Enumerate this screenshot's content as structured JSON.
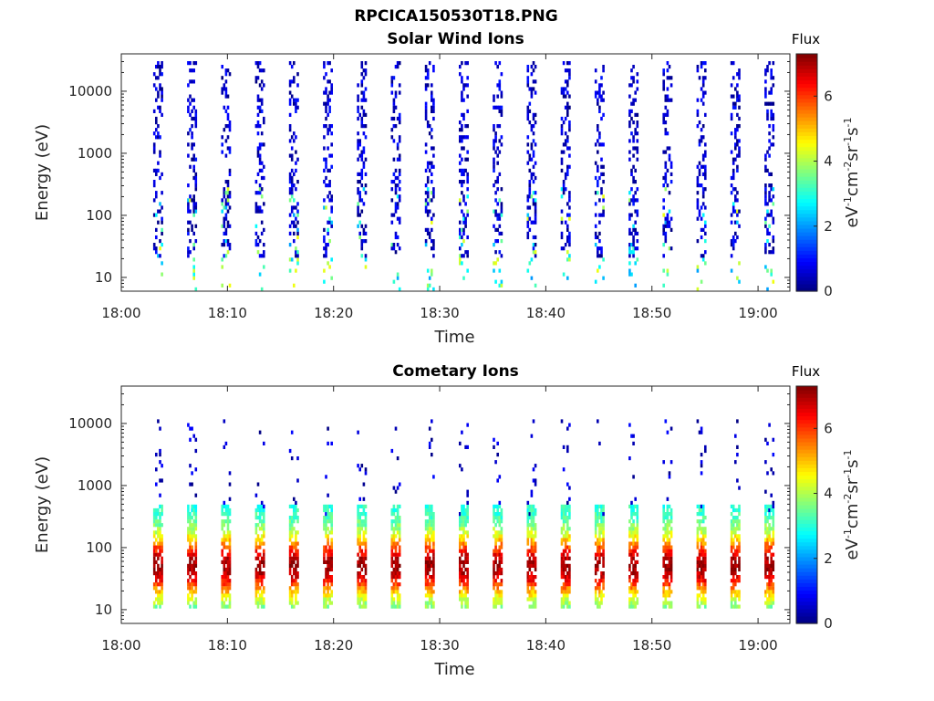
{
  "figure_title": "RPCICA150530T18.PNG",
  "chart_data": [
    {
      "type": "heatmap",
      "title": "Solar Wind Ions",
      "xlabel": "Time",
      "ylabel": "Energy (eV)",
      "x_ticks": [
        "18:00",
        "18:10",
        "18:20",
        "18:30",
        "18:40",
        "18:50",
        "19:00"
      ],
      "x_range": [
        "18:00",
        "19:03"
      ],
      "y_scale": "log",
      "y_ticks": [
        "10",
        "100",
        "1000",
        "10000"
      ],
      "y_range_eV": [
        6,
        40000
      ],
      "grid": false,
      "colorbar": {
        "title": "Flux",
        "label": "eV-1cm-2sr-1s-1",
        "ticks": [
          "0",
          "2",
          "4",
          "6"
        ],
        "range": [
          0,
          7.3
        ],
        "colormap": "jet"
      },
      "scan_cycle_minutes": 3.2,
      "first_scan_time": "18:03",
      "pattern": "sparse low-flux (0-1) counts from ~20 eV to ~30000 eV in each scan, occasional 2-4 flux below ~300 eV"
    },
    {
      "type": "heatmap",
      "title": "Cometary Ions",
      "xlabel": "Time",
      "ylabel": "Energy (eV)",
      "x_ticks": [
        "18:00",
        "18:10",
        "18:20",
        "18:30",
        "18:40",
        "18:50",
        "19:00"
      ],
      "x_range": [
        "18:00",
        "19:03"
      ],
      "y_scale": "log",
      "y_ticks": [
        "10",
        "100",
        "1000",
        "10000"
      ],
      "y_range_eV": [
        6,
        40000
      ],
      "grid": false,
      "colorbar": {
        "title": "Flux",
        "label": "eV-1cm-2sr-1s-1",
        "ticks": [
          "0",
          "2",
          "4",
          "6"
        ],
        "range": [
          0,
          7.3
        ],
        "colormap": "jet"
      },
      "scan_cycle_minutes": 3.2,
      "first_scan_time": "18:03",
      "pattern": "intense flux (4-7) from ~10 eV to ~500 eV in each scan, peak near 40-60 eV; sparse low flux up to ~10000 eV"
    }
  ]
}
